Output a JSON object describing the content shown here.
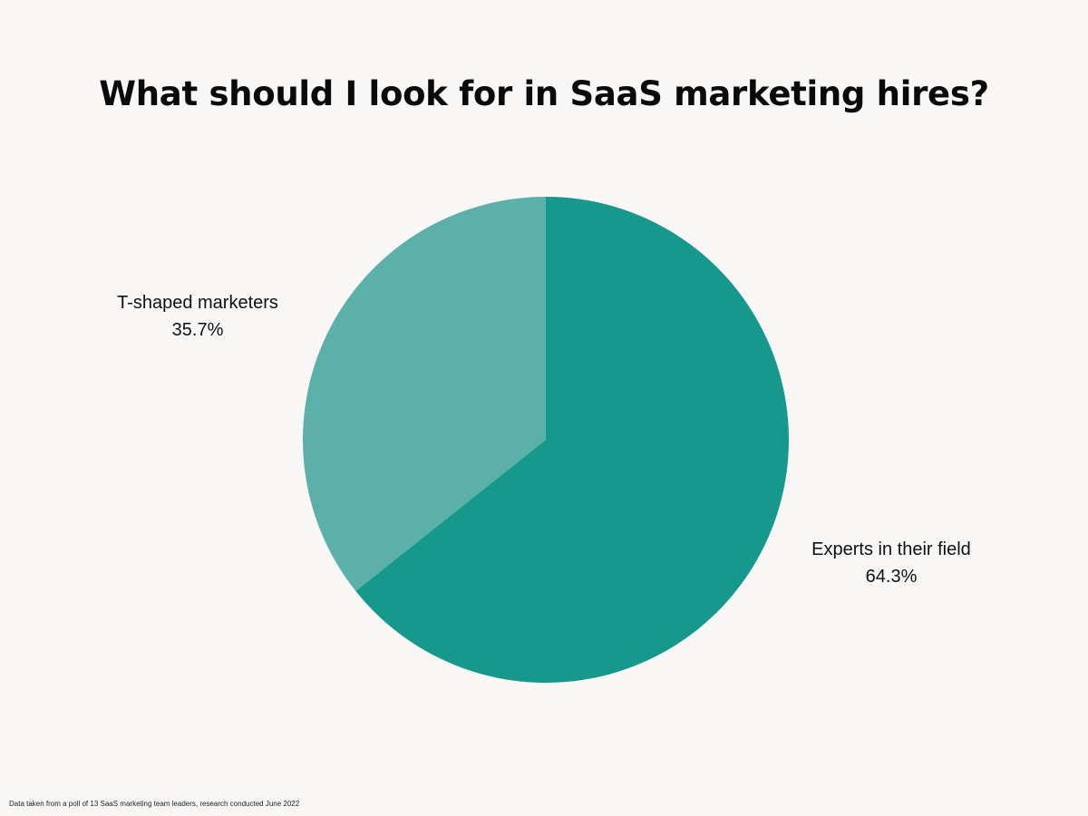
{
  "title": "What should I look for in SaaS marketing hires?",
  "footnote": "Data taken from a poll of 13 SaaS marketing team leaders, research conducted June 2022",
  "chart_data": {
    "type": "pie",
    "title": "What should I look for in SaaS marketing hires?",
    "slices": [
      {
        "label": "Experts in their field",
        "value": 64.3,
        "value_label": "64.3%",
        "color": "#16988d"
      },
      {
        "label": "T-shaped marketers",
        "value": 35.7,
        "value_label": "35.7%",
        "color": "#5bb0aa"
      }
    ],
    "start_angle": "12 o'clock",
    "direction": "clockwise",
    "legend": "none"
  }
}
